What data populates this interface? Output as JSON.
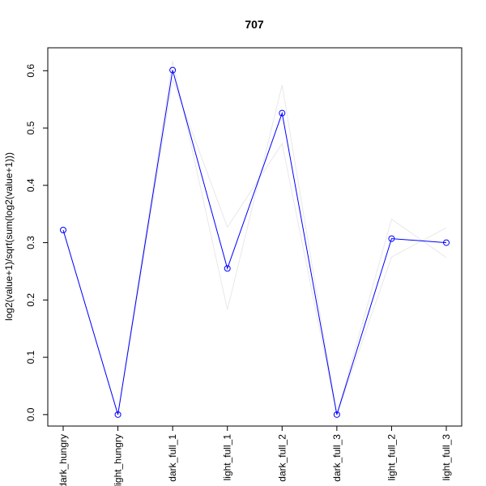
{
  "chart_data": {
    "type": "line",
    "title": "707",
    "xlabel": "",
    "ylabel": "log2(value+1)/sqrt(sum(log2(value+1)))",
    "categories": [
      "dark_hungry",
      "light_hungry",
      "dark_full_1",
      "light_full_1",
      "dark_full_2",
      "dark_full_3",
      "light_full_2",
      "light_full_3"
    ],
    "ylim": [
      -0.02,
      0.64
    ],
    "yticks": [
      0.0,
      0.1,
      0.2,
      0.3,
      0.4,
      0.5,
      0.6
    ],
    "ytick_labels": [
      "0.0",
      "0.1",
      "0.2",
      "0.3",
      "0.4",
      "0.5",
      "0.6"
    ],
    "grid": false,
    "legend": "none",
    "series": [
      {
        "values": [
          0.322,
          0.0,
          0.601,
          0.255,
          0.526,
          0.0,
          0.307,
          0.3
        ],
        "color": "#0000ff",
        "markers": "open-circle"
      },
      {
        "values": [
          0.322,
          0.0,
          0.617,
          0.183,
          0.575,
          0.0,
          0.275,
          0.326
        ],
        "color": "#e8e8e8",
        "markers": "none"
      },
      {
        "values": [
          0.322,
          0.0,
          0.585,
          0.327,
          0.473,
          0.0,
          0.341,
          0.274
        ],
        "color": "#e8e8e8",
        "markers": "none"
      }
    ]
  }
}
